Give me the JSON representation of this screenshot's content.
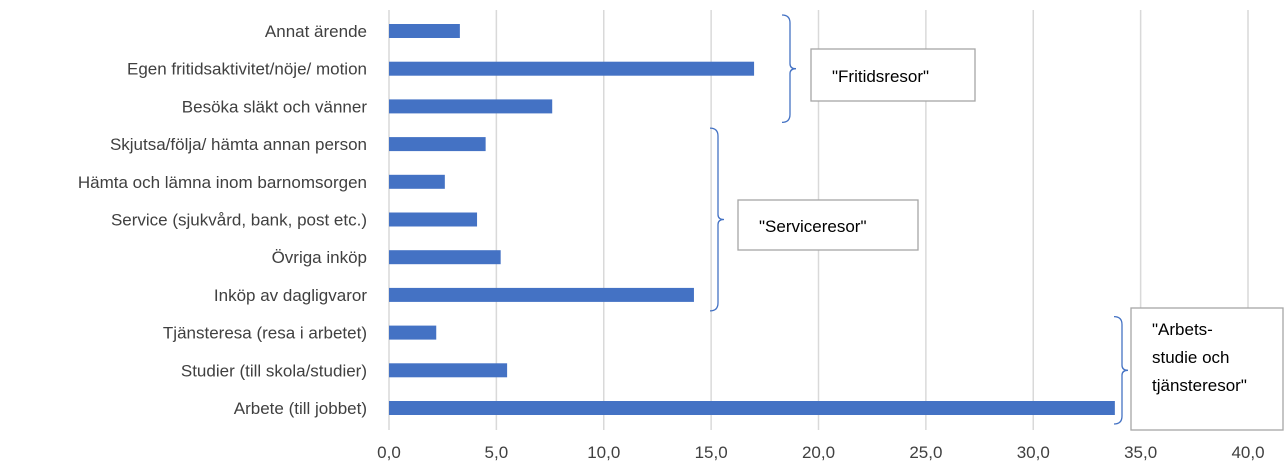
{
  "chart_data": {
    "type": "bar",
    "orientation": "horizontal",
    "categories": [
      "Annat ärende",
      "Egen fritidsaktivitet/nöje/ motion",
      "Besöka släkt och vänner",
      "Skjutsa/följa/ hämta annan person",
      "Hämta och lämna inom barnomsorgen",
      "Service (sjukvård, bank, post etc.)",
      "Övriga inköp",
      "Inköp av dagligvaror",
      "Tjänsteresa (resa i arbetet)",
      "Studier (till skola/studier)",
      "Arbete (till jobbet)"
    ],
    "values": [
      3.3,
      17.0,
      7.6,
      4.5,
      2.6,
      4.1,
      5.2,
      14.2,
      2.2,
      5.5,
      33.8
    ],
    "xlim": [
      0,
      40
    ],
    "xticks": [
      "0,0",
      "5,0",
      "10,0",
      "15,0",
      "20,0",
      "25,0",
      "30,0",
      "35,0",
      "40,0"
    ],
    "grid": true,
    "bar_color": "#4472c4",
    "bracket_color": "#4472c4",
    "groups": [
      {
        "text_lines": [
          "\"Fritidsresor\""
        ],
        "first_index": 0,
        "last_index": 2
      },
      {
        "text_lines": [
          "\"Serviceresor\""
        ],
        "first_index": 3,
        "last_index": 7
      },
      {
        "text_lines": [
          "\"Arbets-",
          "studie och",
          "tjänsteresor\""
        ],
        "first_index": 8,
        "last_index": 10
      }
    ]
  }
}
